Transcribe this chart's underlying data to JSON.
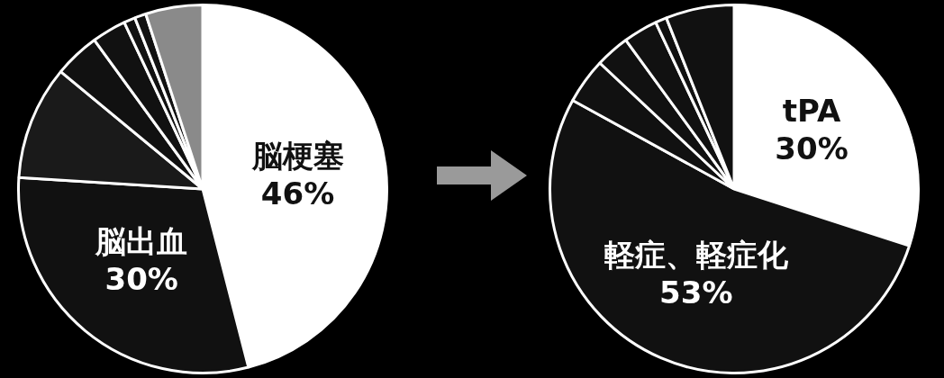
{
  "chart_data": [
    {
      "type": "pie",
      "categories": [
        "脳梗塞",
        "脳出血",
        null,
        null,
        null,
        null,
        null,
        null
      ],
      "values": [
        46,
        30,
        10,
        4,
        3,
        1,
        1,
        5
      ],
      "colors": [
        "#ffffff",
        "#111111",
        "#1a1a1a",
        "#111111",
        "#111111",
        "#111111",
        "#111111",
        "#8a8a8a"
      ],
      "value_labels": [
        "46%",
        "30%",
        null,
        null,
        null,
        null,
        null,
        null
      ]
    },
    {
      "type": "pie",
      "categories": [
        "tPA",
        "軽症、軽症化",
        null,
        null,
        null,
        null,
        null
      ],
      "values": [
        30,
        53,
        4,
        3,
        3,
        1,
        6
      ],
      "colors": [
        "#ffffff",
        "#111111",
        "#111111",
        "#111111",
        "#111111",
        "#111111",
        "#111111"
      ],
      "value_labels": [
        "30%",
        "53%",
        null,
        null,
        null,
        null,
        null
      ]
    }
  ]
}
